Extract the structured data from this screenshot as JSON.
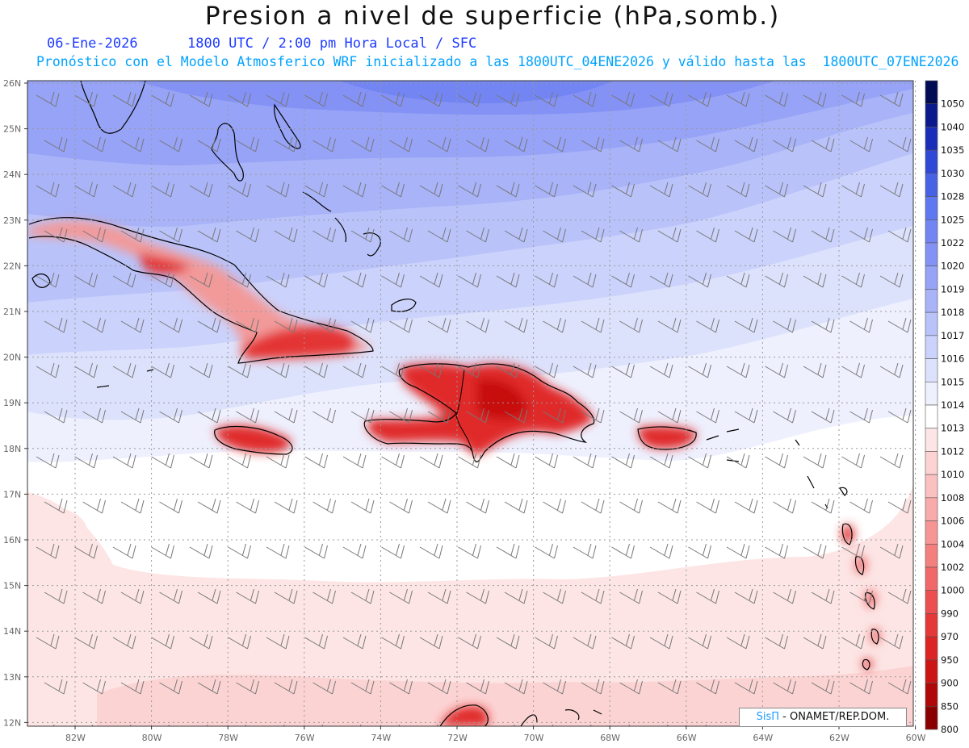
{
  "title": "Presion a nivel de superficie (hPa,somb.)",
  "subtitle_line1": "06-Ene-2026      1800 UTC / 2:00 pm Hora Local / SFC",
  "subtitle_line2": "Pronóstico con el Modelo Atmosferico WRF inicializado a las 1800UTC_04ENE2026 y válido hasta las  1800UTC_07ENE2026",
  "latitude_labels": [
    "26N",
    "25N",
    "24N",
    "23N",
    "22N",
    "21N",
    "20N",
    "19N",
    "18N",
    "17N",
    "16N",
    "15N",
    "14N",
    "13N",
    "12N"
  ],
  "longitude_labels": [
    "82W",
    "80W",
    "78W",
    "76W",
    "74W",
    "72W",
    "70W",
    "68W",
    "66W",
    "64W",
    "62W",
    "60W"
  ],
  "colorbar": {
    "levels": [
      "1050",
      "1040",
      "1035",
      "1030",
      "1028",
      "1025",
      "1022",
      "1020",
      "1019",
      "1018",
      "1017",
      "1016",
      "1015",
      "1014",
      "1013",
      "1012",
      "1010",
      "1008",
      "1006",
      "1004",
      "1002",
      "1000",
      "990",
      "970",
      "950",
      "900",
      "850",
      "800"
    ],
    "colors": [
      "#000d55",
      "#0a1a8c",
      "#1a2db8",
      "#2f48d6",
      "#4862e6",
      "#5e78ef",
      "#7285f3",
      "#8492f5",
      "#96a3f6",
      "#a8b3f8",
      "#b9c3fa",
      "#cbd2fb",
      "#dde2fc",
      "#eef0fe",
      "#ffffff",
      "#fde5e5",
      "#fcd3d3",
      "#fbc1c1",
      "#f9abab",
      "#f79595",
      "#f47f7f",
      "#f06868",
      "#ec4f4f",
      "#e53838",
      "#dc2424",
      "#cc1414",
      "#b00808",
      "#8a0000"
    ]
  },
  "credit": {
    "brand": "SisΠ",
    "text": " - ONAMET/REP.DOM."
  },
  "islands": [
    "Cuba",
    "Jamaica",
    "Hispaniola",
    "Puerto Rico",
    "Bahamas",
    "Lesser Antilles"
  ]
}
